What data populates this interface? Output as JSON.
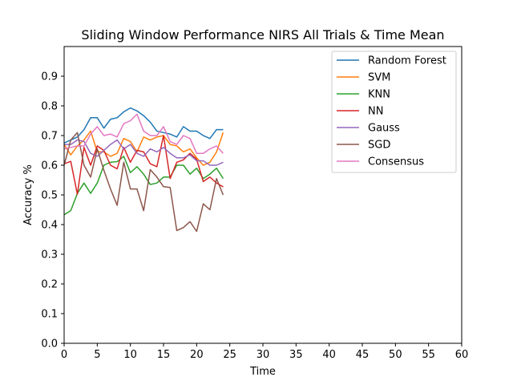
{
  "chart_data": {
    "type": "line",
    "title": "Sliding Window Performance NIRS All Trials & Time Mean",
    "xlabel": "Time",
    "ylabel": "Accuracy %",
    "xlim": [
      0,
      60
    ],
    "ylim": [
      0,
      1.0
    ],
    "xticks": [
      "0",
      "5",
      "10",
      "15",
      "20",
      "25",
      "30",
      "35",
      "40",
      "45",
      "50",
      "55",
      "60"
    ],
    "yticks": [
      "0.0",
      "0.1",
      "0.2",
      "0.3",
      "0.4",
      "0.5",
      "0.6",
      "0.7",
      "0.8",
      "0.9"
    ],
    "grid": false,
    "legend_position": "top-right",
    "x": [
      0,
      1,
      2,
      3,
      4,
      5,
      6,
      7,
      8,
      9,
      10,
      11,
      12,
      13,
      14,
      15,
      16,
      17,
      18,
      19,
      20,
      21,
      22,
      23,
      24
    ],
    "series": [
      {
        "name": "Random Forest",
        "color": "#1f77b4",
        "values": [
          0.675,
          0.685,
          0.695,
          0.72,
          0.76,
          0.76,
          0.725,
          0.755,
          0.76,
          0.78,
          0.793,
          0.783,
          0.767,
          0.745,
          0.715,
          0.71,
          0.705,
          0.695,
          0.73,
          0.715,
          0.715,
          0.7,
          0.69,
          0.72,
          0.72
        ]
      },
      {
        "name": "SVM",
        "color": "#ff7f0e",
        "values": [
          0.67,
          0.635,
          0.665,
          0.685,
          0.715,
          0.645,
          0.645,
          0.63,
          0.64,
          0.69,
          0.68,
          0.645,
          0.695,
          0.685,
          0.695,
          0.7,
          0.67,
          0.665,
          0.645,
          0.655,
          0.625,
          0.6,
          0.61,
          0.645,
          0.71
        ]
      },
      {
        "name": "KNN",
        "color": "#2ca02c",
        "values": [
          0.433,
          0.447,
          0.505,
          0.54,
          0.505,
          0.54,
          0.6,
          0.61,
          0.612,
          0.63,
          0.575,
          0.595,
          0.57,
          0.535,
          0.54,
          0.56,
          0.56,
          0.6,
          0.6,
          0.57,
          0.59,
          0.555,
          0.57,
          0.59,
          0.555
        ]
      },
      {
        "name": "NN",
        "color": "#d62728",
        "values": [
          0.605,
          0.613,
          0.502,
          0.66,
          0.6,
          0.665,
          0.65,
          0.6,
          0.588,
          0.66,
          0.61,
          0.65,
          0.645,
          0.605,
          0.595,
          0.7,
          0.555,
          0.61,
          0.618,
          0.64,
          0.62,
          0.545,
          0.56,
          0.54,
          0.527
        ]
      },
      {
        "name": "Gauss",
        "color": "#9467bd",
        "values": [
          0.67,
          0.67,
          0.685,
          0.68,
          0.64,
          0.63,
          0.65,
          0.67,
          0.685,
          0.655,
          0.67,
          0.64,
          0.63,
          0.655,
          0.645,
          0.66,
          0.64,
          0.625,
          0.625,
          0.635,
          0.615,
          0.615,
          0.6,
          0.6,
          0.61
        ]
      },
      {
        "name": "SGD",
        "color": "#8c564b",
        "values": [
          0.6,
          0.685,
          0.71,
          0.6,
          0.56,
          0.655,
          0.583,
          0.52,
          0.465,
          0.61,
          0.52,
          0.52,
          0.447,
          0.585,
          0.56,
          0.528,
          0.525,
          0.38,
          0.39,
          0.41,
          0.377,
          0.47,
          0.45,
          0.555,
          0.5
        ]
      },
      {
        "name": "Consensus",
        "color": "#e377c2",
        "values": [
          0.655,
          0.66,
          0.665,
          0.665,
          0.705,
          0.73,
          0.7,
          0.705,
          0.695,
          0.74,
          0.75,
          0.772,
          0.715,
          0.7,
          0.7,
          0.73,
          0.68,
          0.67,
          0.7,
          0.69,
          0.64,
          0.64,
          0.655,
          0.665,
          0.64
        ]
      }
    ]
  }
}
